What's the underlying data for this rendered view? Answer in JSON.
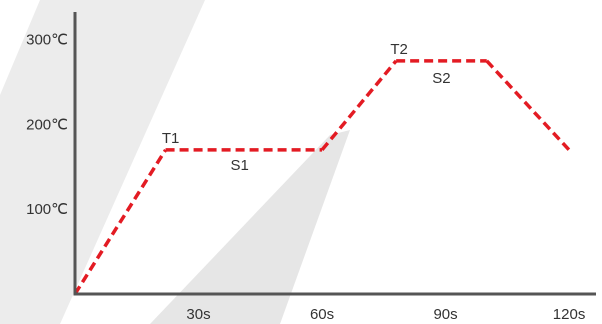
{
  "chart_data": {
    "type": "line",
    "title": "",
    "xlabel": "",
    "ylabel": "",
    "x_ticks": [
      {
        "value": 30,
        "label": "30s"
      },
      {
        "value": 60,
        "label": "60s"
      },
      {
        "value": 90,
        "label": "90s"
      },
      {
        "value": 120,
        "label": "120s"
      }
    ],
    "y_ticks": [
      {
        "value": 100,
        "label": "100℃"
      },
      {
        "value": 200,
        "label": "200℃"
      },
      {
        "value": 300,
        "label": "300℃"
      }
    ],
    "xlim": [
      0,
      128
    ],
    "ylim": [
      0,
      335
    ],
    "series": [
      {
        "points": [
          {
            "x": 0,
            "y": 0
          },
          {
            "x": 22,
            "y": 170
          },
          {
            "x": 60,
            "y": 170
          },
          {
            "x": 78,
            "y": 275
          },
          {
            "x": 100,
            "y": 275
          },
          {
            "x": 120,
            "y": 170
          }
        ]
      }
    ],
    "annotations": [
      {
        "text": "T1",
        "x": 22,
        "y": 170
      },
      {
        "text": "S1",
        "x": 40,
        "y": 170
      },
      {
        "text": "T2",
        "x": 78,
        "y": 275
      },
      {
        "text": "S2",
        "x": 89,
        "y": 275
      }
    ],
    "colors": {
      "line": "#e31b23",
      "axis": "#555555",
      "text": "#333333",
      "background_band": "#e9e9e9"
    },
    "grid": false
  }
}
